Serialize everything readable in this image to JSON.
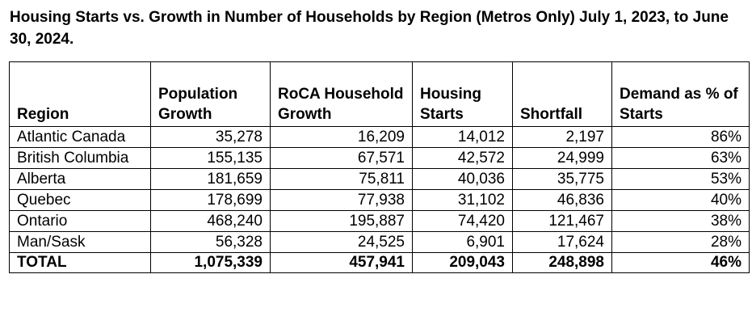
{
  "title": "Housing Starts vs. Growth in Number of Households by Region (Metros Only) July 1, 2023, to June 30, 2024.",
  "columns": [
    "Region",
    "Population Growth",
    "RoCA Household Growth",
    "Housing Starts",
    "Shortfall",
    "Demand as % of Starts"
  ],
  "rows": [
    {
      "region": "Atlantic Canada",
      "population_growth": "35,278",
      "household_growth": "16,209",
      "housing_starts": "14,012",
      "shortfall": "2,197",
      "demand_pct": "86%"
    },
    {
      "region": "British Columbia",
      "population_growth": "155,135",
      "household_growth": "67,571",
      "housing_starts": "42,572",
      "shortfall": "24,999",
      "demand_pct": "63%"
    },
    {
      "region": "Alberta",
      "population_growth": "181,659",
      "household_growth": "75,811",
      "housing_starts": "40,036",
      "shortfall": "35,775",
      "demand_pct": "53%"
    },
    {
      "region": "Quebec",
      "population_growth": "178,699",
      "household_growth": "77,938",
      "housing_starts": "31,102",
      "shortfall": "46,836",
      "demand_pct": "40%"
    },
    {
      "region": "Ontario",
      "population_growth": "468,240",
      "household_growth": "195,887",
      "housing_starts": "74,420",
      "shortfall": "121,467",
      "demand_pct": "38%"
    },
    {
      "region": "Man/Sask",
      "population_growth": "56,328",
      "household_growth": "24,525",
      "housing_starts": "6,901",
      "shortfall": "17,624",
      "demand_pct": "28%"
    }
  ],
  "total": {
    "region": "TOTAL",
    "population_growth": "1,075,339",
    "household_growth": "457,941",
    "housing_starts": "209,043",
    "shortfall": "248,898",
    "demand_pct": "46%"
  }
}
